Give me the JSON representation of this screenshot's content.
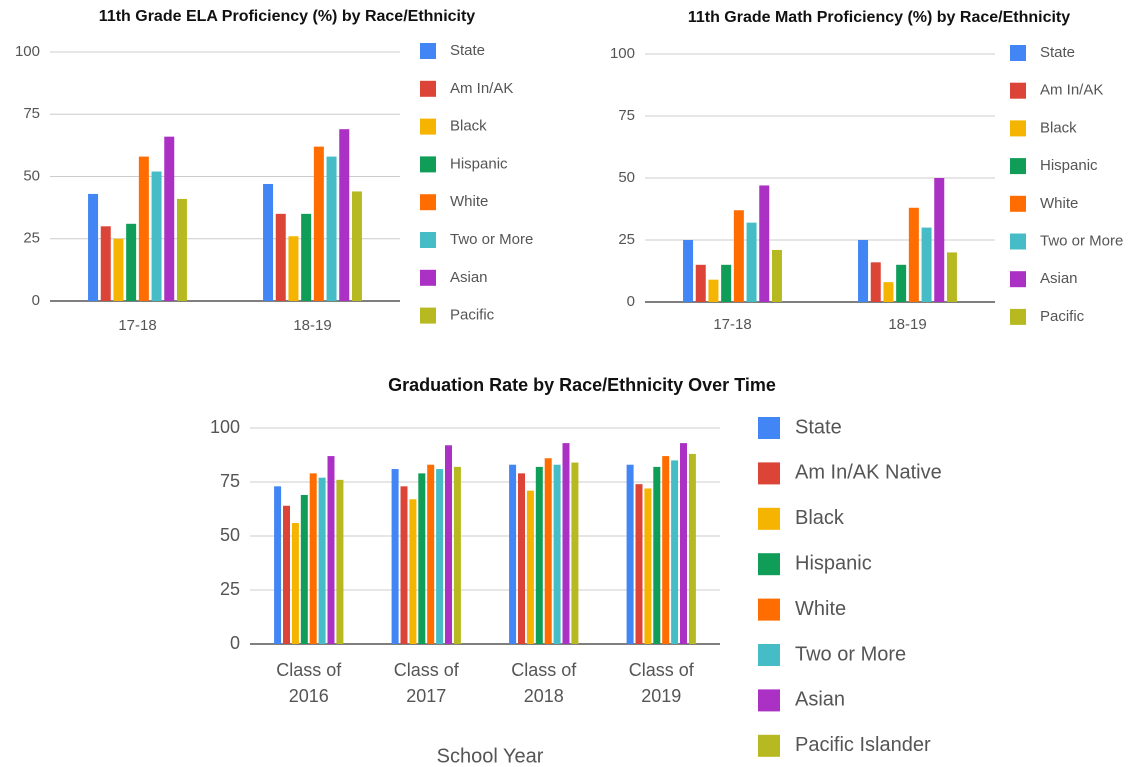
{
  "chart_data": [
    {
      "type": "bar",
      "title": "11th Grade ELA Proficiency (%) by Race/Ethnicity",
      "categories": [
        "17-18",
        "18-19"
      ],
      "series": [
        {
          "name": "State",
          "color": "#4285f4",
          "values": [
            43,
            47
          ]
        },
        {
          "name": "Am In/AK",
          "color": "#db4437",
          "values": [
            30,
            35
          ]
        },
        {
          "name": "Black",
          "color": "#f4b400",
          "values": [
            25,
            26
          ]
        },
        {
          "name": "Hispanic",
          "color": "#0f9d58",
          "values": [
            31,
            35
          ]
        },
        {
          "name": "White",
          "color": "#ff6d00",
          "values": [
            58,
            62
          ]
        },
        {
          "name": "Two or More",
          "color": "#46bdc6",
          "values": [
            52,
            58
          ]
        },
        {
          "name": "Asian",
          "color": "#ab30c4",
          "values": [
            66,
            69
          ]
        },
        {
          "name": "Pacific",
          "color": "#b7b921",
          "values": [
            41,
            44
          ]
        }
      ],
      "ylim": [
        0,
        100
      ],
      "yticks": [
        0,
        25,
        50,
        75,
        100
      ],
      "grid": true,
      "legend": "right"
    },
    {
      "type": "bar",
      "title": "11th Grade Math Proficiency (%) by Race/Ethnicity",
      "categories": [
        "17-18",
        "18-19"
      ],
      "series": [
        {
          "name": "State",
          "color": "#4285f4",
          "values": [
            25,
            25
          ]
        },
        {
          "name": "Am In/AK",
          "color": "#db4437",
          "values": [
            15,
            16
          ]
        },
        {
          "name": "Black",
          "color": "#f4b400",
          "values": [
            9,
            8
          ]
        },
        {
          "name": "Hispanic",
          "color": "#0f9d58",
          "values": [
            15,
            15
          ]
        },
        {
          "name": "White",
          "color": "#ff6d00",
          "values": [
            37,
            38
          ]
        },
        {
          "name": "Two or More",
          "color": "#46bdc6",
          "values": [
            32,
            30
          ]
        },
        {
          "name": "Asian",
          "color": "#ab30c4",
          "values": [
            47,
            50
          ]
        },
        {
          "name": "Pacific",
          "color": "#b7b921",
          "values": [
            21,
            20
          ]
        }
      ],
      "ylim": [
        0,
        100
      ],
      "yticks": [
        0,
        25,
        50,
        75,
        100
      ],
      "grid": true,
      "legend": "right"
    },
    {
      "type": "bar",
      "title": "Graduation Rate by Race/Ethnicity Over Time",
      "x_label": "School Year",
      "categories": [
        "Class of 2016",
        "Class of 2017",
        "Class of 2018",
        "Class of 2019"
      ],
      "series": [
        {
          "name": "State",
          "color": "#4285f4",
          "values": [
            73,
            81,
            83,
            83
          ]
        },
        {
          "name": "Am In/AK Native",
          "color": "#db4437",
          "values": [
            64,
            73,
            79,
            74
          ]
        },
        {
          "name": "Black",
          "color": "#f4b400",
          "values": [
            56,
            67,
            71,
            72
          ]
        },
        {
          "name": "Hispanic",
          "color": "#0f9d58",
          "values": [
            69,
            79,
            82,
            82
          ]
        },
        {
          "name": "White",
          "color": "#ff6d00",
          "values": [
            79,
            83,
            86,
            87
          ]
        },
        {
          "name": "Two or More",
          "color": "#46bdc6",
          "values": [
            77,
            81,
            83,
            85
          ]
        },
        {
          "name": "Asian",
          "color": "#ab30c4",
          "values": [
            87,
            92,
            93,
            93
          ]
        },
        {
          "name": "Pacific Islander",
          "color": "#b7b921",
          "values": [
            76,
            82,
            84,
            88
          ]
        }
      ],
      "ylim": [
        0,
        100
      ],
      "yticks": [
        0,
        25,
        50,
        75,
        100
      ],
      "grid": true,
      "legend": "right"
    }
  ]
}
